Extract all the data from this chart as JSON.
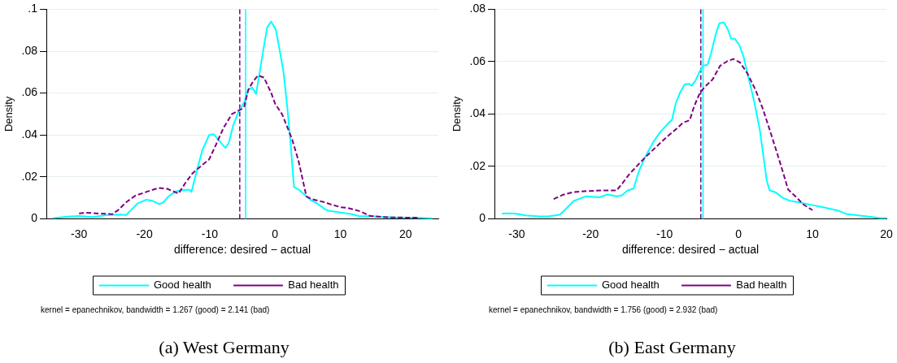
{
  "chart_data": [
    {
      "type": "line",
      "title": "(a) West Germany",
      "xlabel": "difference: desired − actual",
      "ylabel": "Density",
      "xlim": [
        -35,
        25
      ],
      "xticks": [
        -30,
        -20,
        -10,
        0,
        10,
        20
      ],
      "ylim": [
        0,
        0.1
      ],
      "yticks": [
        {
          "value": 0,
          "label": "0"
        },
        {
          "value": 0.02,
          "label": ".02"
        },
        {
          "value": 0.04,
          "label": ".04"
        },
        {
          "value": 0.06,
          "label": ".06"
        },
        {
          "value": 0.08,
          "label": ".08"
        },
        {
          "value": 0.1,
          "label": ".1"
        }
      ],
      "grid": "y",
      "legend": "bottom",
      "marker": "none",
      "series": [
        {
          "name": "Good health",
          "color": "#00ffff",
          "line_style": "solid",
          "x": [
            -34,
            -31.7,
            -30,
            -27.9,
            -25.7,
            -23.6,
            -22.8,
            -22.1,
            -21,
            -19.7,
            -18.9,
            -17.7,
            -17.1,
            -16.3,
            -15.2,
            -13.7,
            -13.1,
            -12.8,
            -11.8,
            -11.1,
            -10.5,
            -10.1,
            -9.4,
            -8.6,
            -7.6,
            -7.1,
            -6.4,
            -5.6,
            -4.7,
            -4.1,
            -3.5,
            -2.9,
            -2.4,
            -1.7,
            -1.2,
            -0.6,
            0.1,
            0.6,
            1.3,
            1.9,
            2.4,
            2.9,
            3.6,
            5.4,
            6.4,
            7.7,
            8.4,
            10.3,
            11.8,
            12.9,
            14.6,
            18.9,
            22.3,
            24.1
          ],
          "values": [
            0.0003,
            0.001,
            0.0013,
            0.0008,
            0.0018,
            0.002,
            0.0018,
            0.004,
            0.0074,
            0.0091,
            0.0087,
            0.007,
            0.0078,
            0.0107,
            0.013,
            0.0138,
            0.0138,
            0.0128,
            0.025,
            0.033,
            0.037,
            0.04,
            0.0404,
            0.0374,
            0.0338,
            0.036,
            0.0446,
            0.051,
            0.0557,
            0.0615,
            0.0626,
            0.0596,
            0.069,
            0.0824,
            0.0913,
            0.0941,
            0.0905,
            0.0824,
            0.07,
            0.0524,
            0.0355,
            0.0151,
            0.014,
            0.0091,
            0.0074,
            0.0044,
            0.0037,
            0.0029,
            0.0022,
            0.0012,
            0.0012,
            0.0005,
            0.0004,
            0.0001
          ]
        },
        {
          "name": "Bad health",
          "color": "#800080",
          "line_style": "dashed",
          "x": [
            -30,
            -28.9,
            -27,
            -24.9,
            -24,
            -22.7,
            -21.4,
            -19.9,
            -18.9,
            -17.8,
            -16.5,
            -15.2,
            -14.8,
            -13.7,
            -12.6,
            -11.4,
            -10.1,
            -9.2,
            -7.9,
            -6.6,
            -5.1,
            -4.7,
            -4.1,
            -3.4,
            -2.6,
            -1.7,
            -0.6,
            0,
            1.1,
            2.6,
            3.6,
            4.8,
            5.6,
            7.7,
            8.6,
            10.1,
            11.1,
            13.1,
            14.6,
            17.1,
            22.1
          ],
          "values": [
            0.0026,
            0.0029,
            0.0025,
            0.0022,
            0.0042,
            0.0081,
            0.011,
            0.0126,
            0.0137,
            0.0147,
            0.0143,
            0.0126,
            0.012,
            0.0172,
            0.0218,
            0.025,
            0.0283,
            0.0342,
            0.0433,
            0.05,
            0.0524,
            0.0537,
            0.0615,
            0.0654,
            0.0684,
            0.0674,
            0.0602,
            0.055,
            0.0498,
            0.0381,
            0.0276,
            0.0107,
            0.0094,
            0.0078,
            0.0068,
            0.0055,
            0.0052,
            0.0035,
            0.0013,
            0.0007,
            0.0005
          ]
        }
      ],
      "ref_lines": [
        {
          "axis": "x",
          "value": -5.4,
          "color": "#800080",
          "line_style": "dashed"
        },
        {
          "axis": "x",
          "value": -4.5,
          "color": "#00ffff",
          "line_style": "solid"
        }
      ],
      "annotations": [
        "kernel = epanechnikov, bandwidth = 1.267 (good) = 2.141 (bad)"
      ]
    },
    {
      "type": "line",
      "title": "(b) East Germany",
      "xlabel": "difference: desired − actual",
      "ylabel": "Density",
      "xlim": [
        -33,
        20
      ],
      "xticks": [
        -30,
        -20,
        -10,
        0,
        10,
        20
      ],
      "ylim": [
        0,
        0.08
      ],
      "yticks": [
        {
          "value": 0,
          "label": "0"
        },
        {
          "value": 0.02,
          "label": ".02"
        },
        {
          "value": 0.04,
          "label": ".04"
        },
        {
          "value": 0.06,
          "label": ".06"
        },
        {
          "value": 0.08,
          "label": ".08"
        }
      ],
      "grid": "y",
      "legend": "bottom",
      "marker": "none",
      "series": [
        {
          "name": "Good health",
          "color": "#00ffff",
          "line_style": "solid",
          "x": [
            -32,
            -31,
            -30,
            -28.8,
            -26.9,
            -25.8,
            -24.2,
            -23.5,
            -22.3,
            -20.6,
            -18.8,
            -17.7,
            -16.5,
            -15.8,
            -15,
            -14.2,
            -13.5,
            -12.7,
            -11.5,
            -10.6,
            -9.4,
            -9,
            -8.5,
            -7.9,
            -7.3,
            -6.7,
            -6.3,
            -5.8,
            -5.2,
            -4.8,
            -4.2,
            -3.7,
            -3.1,
            -2.6,
            -2,
            -1.5,
            -1,
            -0.5,
            0.1,
            0.7,
            1.3,
            2.1,
            2.9,
            3.8,
            4.2,
            5,
            6,
            6.9,
            8.1,
            10,
            11.5,
            13.5,
            14.6,
            16.2,
            18.1,
            19.2,
            20
          ],
          "values": [
            0.002,
            0.0021,
            0.0019,
            0.0013,
            0.0009,
            0.0009,
            0.0015,
            0.0033,
            0.0068,
            0.0086,
            0.0082,
            0.0093,
            0.0086,
            0.0089,
            0.0108,
            0.0115,
            0.0179,
            0.0232,
            0.0294,
            0.0331,
            0.0367,
            0.0378,
            0.044,
            0.0482,
            0.0513,
            0.0515,
            0.0508,
            0.0529,
            0.0565,
            0.0584,
            0.0588,
            0.0633,
            0.0703,
            0.0746,
            0.075,
            0.0727,
            0.0688,
            0.0687,
            0.0664,
            0.0617,
            0.0544,
            0.0451,
            0.0336,
            0.0148,
            0.0108,
            0.0101,
            0.008,
            0.0069,
            0.0063,
            0.0052,
            0.0044,
            0.0031,
            0.0018,
            0.0013,
            0.0007,
            0.0002,
            0.0002
          ]
        },
        {
          "name": "Bad health",
          "color": "#800080",
          "line_style": "dashed",
          "x": [
            -25,
            -23.8,
            -22.3,
            -20.4,
            -18.5,
            -16.5,
            -15.8,
            -14.8,
            -13.8,
            -12.7,
            -11.2,
            -9.6,
            -8.5,
            -7.5,
            -6.6,
            -6,
            -5.2,
            -4.4,
            -3.5,
            -2.5,
            -1.5,
            -0.7,
            0.2,
            1.2,
            2.3,
            3.3,
            4.2,
            5.2,
            6,
            6.7,
            7.9,
            8.8,
            10
          ],
          "values": [
            0.0075,
            0.0091,
            0.0102,
            0.0106,
            0.0108,
            0.0108,
            0.0132,
            0.0169,
            0.02,
            0.0232,
            0.0273,
            0.0315,
            0.0341,
            0.0367,
            0.0376,
            0.043,
            0.0482,
            0.0508,
            0.0532,
            0.0584,
            0.0602,
            0.061,
            0.0597,
            0.0555,
            0.0492,
            0.0419,
            0.0341,
            0.0252,
            0.0179,
            0.0112,
            0.008,
            0.0054,
            0.0033
          ]
        }
      ],
      "ref_lines": [
        {
          "axis": "x",
          "value": -5.1,
          "color": "#800080",
          "line_style": "dashed"
        },
        {
          "axis": "x",
          "value": -4.8,
          "color": "#00ffff",
          "line_style": "solid"
        }
      ],
      "annotations": [
        "kernel = epanechnikov, bandwidth = 1.756 (good) = 2.932 (bad)"
      ]
    }
  ]
}
